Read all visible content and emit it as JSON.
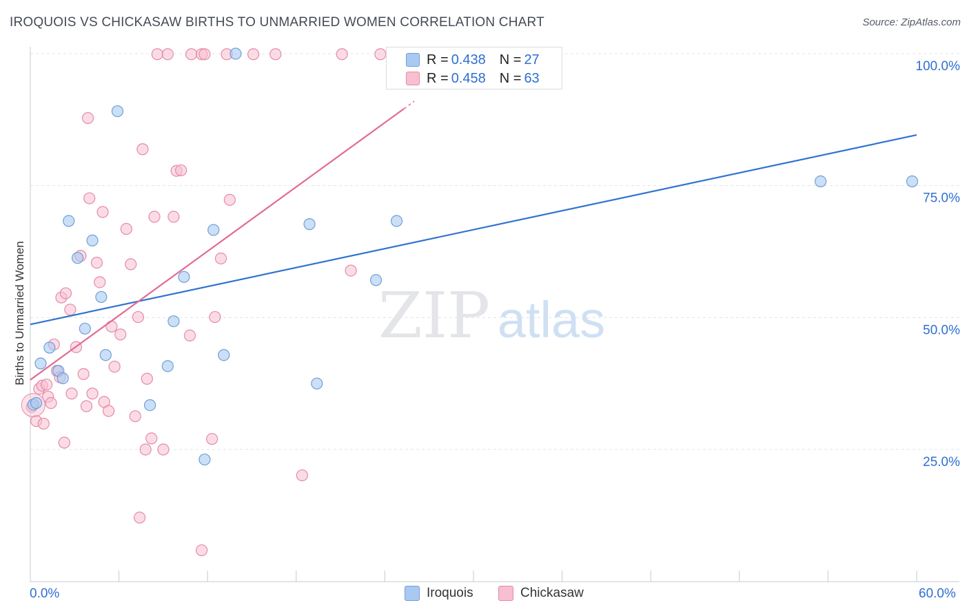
{
  "title": "IROQUOIS VS CHICKASAW BIRTHS TO UNMARRIED WOMEN CORRELATION CHART",
  "source": "Source: ZipAtlas.com",
  "watermark": {
    "zip": "ZIP",
    "atlas": "atlas"
  },
  "legend": {
    "iroquois": {
      "r_label": "R = ",
      "r_value": "0.438",
      "n_label": "N = ",
      "n_value": "27"
    },
    "chickasaw": {
      "r_label": "R = ",
      "r_value": "0.458",
      "n_label": "N = ",
      "n_value": "63"
    }
  },
  "bottom_legend": {
    "iroquois": "Iroquois",
    "chickasaw": "Chickasaw"
  },
  "colors": {
    "iroquois_fill": "#a9c9f2",
    "iroquois_stroke": "#6f9fd8",
    "iroquois_line": "#2f72d0",
    "chickasaw_fill": "#f7bfd0",
    "chickasaw_stroke": "#e48aa8",
    "chickasaw_line": "#e26b92",
    "tick_label": "#2d6fd0",
    "grid": "#dfe3e8"
  },
  "chart_data": {
    "type": "scatter",
    "title": "IROQUOIS VS CHICKASAW BIRTHS TO UNMARRIED WOMEN CORRELATION CHART",
    "xlabel": "",
    "ylabel": "Births to Unmarried Women",
    "xlim": [
      0,
      60
    ],
    "ylim": [
      0,
      105
    ],
    "x_tick_labels": [
      "0.0%",
      "60.0%"
    ],
    "y_ticks": [
      25,
      50,
      75,
      100
    ],
    "y_tick_labels": [
      "25.0%",
      "50.0%",
      "75.0%",
      "100.0%"
    ],
    "grid": true,
    "series": [
      {
        "name": "Iroquois",
        "R": 0.438,
        "N": 27,
        "trend": {
          "x0": 0,
          "y0": 48.7,
          "x1": 60,
          "y1": 84.6
        },
        "points": [
          [
            0.2,
            33.5
          ],
          [
            0.7,
            41.3
          ],
          [
            1.3,
            44.3
          ],
          [
            1.9,
            39.9
          ],
          [
            2.2,
            38.5
          ],
          [
            2.6,
            68.3
          ],
          [
            3.2,
            61.3
          ],
          [
            3.7,
            47.9
          ],
          [
            4.2,
            64.6
          ],
          [
            4.8,
            53.9
          ],
          [
            5.1,
            42.9
          ],
          [
            5.9,
            89.1
          ],
          [
            8.1,
            33.4
          ],
          [
            9.3,
            40.8
          ],
          [
            9.7,
            49.3
          ],
          [
            10.4,
            57.7
          ],
          [
            11.8,
            23.1
          ],
          [
            12.4,
            66.6
          ],
          [
            13.1,
            42.9
          ],
          [
            13.9,
            100.0
          ],
          [
            18.9,
            67.7
          ],
          [
            19.4,
            37.5
          ],
          [
            23.4,
            57.1
          ],
          [
            24.8,
            68.3
          ],
          [
            53.5,
            75.8
          ],
          [
            59.7,
            75.8
          ],
          [
            0.4,
            33.8
          ]
        ]
      },
      {
        "name": "Chickasaw",
        "R": 0.458,
        "N": 63,
        "trend": {
          "x0": 0,
          "y0": 38.2,
          "x1": 26,
          "y1": 91.0
        },
        "points": [
          [
            0.1,
            33.1
          ],
          [
            0.4,
            30.4
          ],
          [
            0.6,
            36.5
          ],
          [
            0.8,
            37.1
          ],
          [
            0.9,
            29.9
          ],
          [
            1.1,
            37.3
          ],
          [
            1.2,
            35.0
          ],
          [
            1.4,
            33.8
          ],
          [
            1.6,
            44.9
          ],
          [
            1.8,
            39.9
          ],
          [
            2.0,
            38.7
          ],
          [
            2.1,
            53.8
          ],
          [
            2.3,
            26.3
          ],
          [
            2.4,
            54.6
          ],
          [
            2.7,
            51.5
          ],
          [
            2.8,
            35.6
          ],
          [
            3.1,
            44.4
          ],
          [
            3.4,
            61.7
          ],
          [
            3.6,
            39.3
          ],
          [
            3.8,
            33.2
          ],
          [
            3.9,
            87.8
          ],
          [
            4.0,
            72.6
          ],
          [
            4.2,
            35.6
          ],
          [
            4.5,
            60.4
          ],
          [
            4.7,
            56.7
          ],
          [
            4.9,
            70.0
          ],
          [
            5.0,
            34.0
          ],
          [
            5.3,
            32.3
          ],
          [
            5.5,
            48.3
          ],
          [
            5.7,
            40.7
          ],
          [
            6.1,
            46.8
          ],
          [
            6.5,
            66.8
          ],
          [
            6.8,
            60.1
          ],
          [
            7.1,
            31.3
          ],
          [
            7.3,
            50.1
          ],
          [
            7.6,
            81.9
          ],
          [
            7.8,
            25.0
          ],
          [
            7.9,
            38.4
          ],
          [
            8.2,
            27.1
          ],
          [
            8.4,
            69.1
          ],
          [
            8.6,
            99.9
          ],
          [
            9.0,
            25.0
          ],
          [
            9.3,
            99.9
          ],
          [
            9.7,
            69.1
          ],
          [
            9.9,
            77.8
          ],
          [
            10.2,
            77.9
          ],
          [
            10.8,
            46.6
          ],
          [
            10.9,
            99.9
          ],
          [
            11.6,
            99.9
          ],
          [
            11.8,
            99.9
          ],
          [
            12.3,
            27.0
          ],
          [
            12.5,
            50.1
          ],
          [
            12.9,
            61.2
          ],
          [
            13.3,
            99.9
          ],
          [
            13.5,
            72.3
          ],
          [
            15.1,
            99.9
          ],
          [
            16.6,
            99.9
          ],
          [
            18.4,
            20.1
          ],
          [
            21.1,
            99.9
          ],
          [
            21.7,
            58.9
          ],
          [
            23.7,
            99.9
          ],
          [
            11.6,
            5.9
          ],
          [
            7.4,
            12.1
          ]
        ]
      }
    ]
  }
}
